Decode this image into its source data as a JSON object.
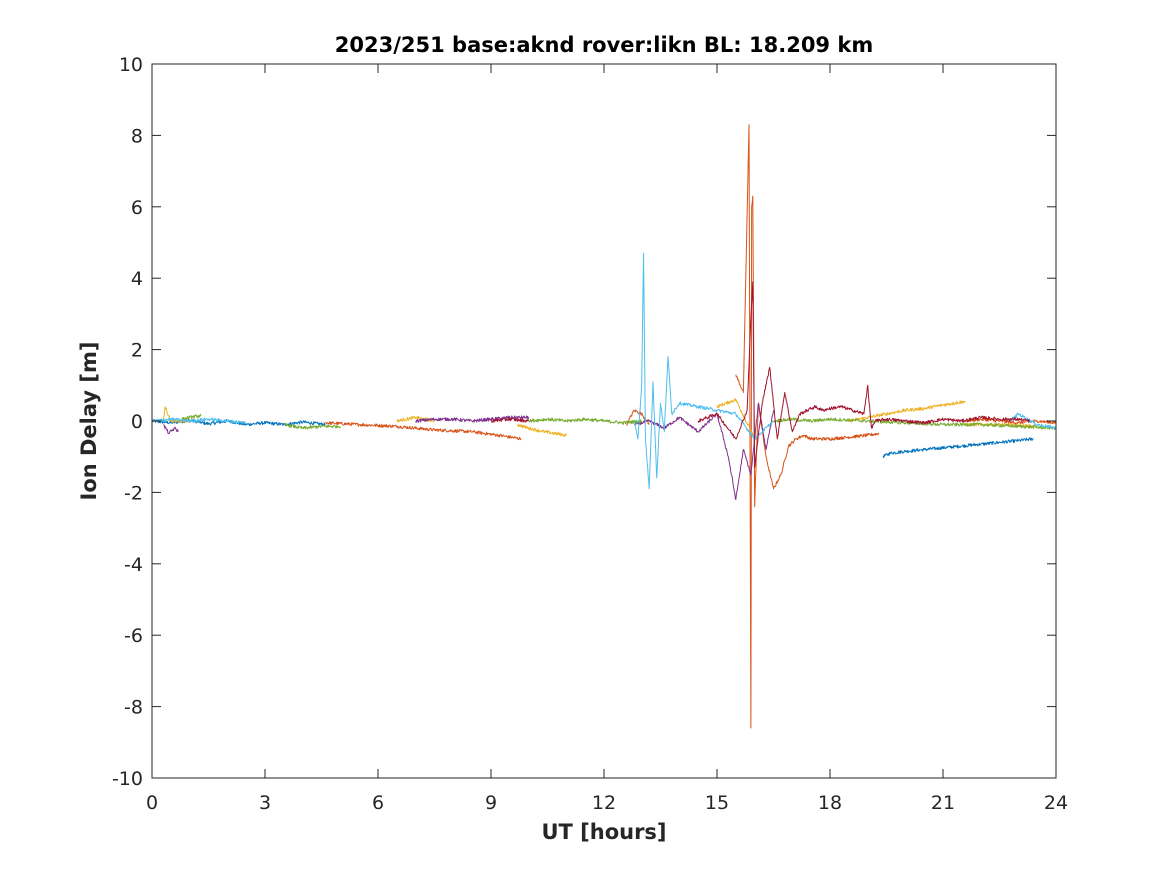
{
  "chart_data": {
    "type": "line",
    "title": "2023/251 base:aknd rover:likn BL: 18.209 km",
    "xlabel": "UT [hours]",
    "ylabel": "Ion Delay [m]",
    "xlim": [
      0,
      24
    ],
    "ylim": [
      -10,
      10
    ],
    "x_ticks": [
      "0",
      "3",
      "6",
      "9",
      "12",
      "15",
      "18",
      "21",
      "24"
    ],
    "y_ticks": [
      "10",
      "8",
      "6",
      "4",
      "2",
      "0",
      "-2",
      "-4",
      "-6",
      "-8",
      "-10"
    ],
    "grid": false,
    "legend": "none",
    "colors": [
      "#0072BD",
      "#D95319",
      "#EDB120",
      "#7E2F8E",
      "#77AC30",
      "#4DBEEE",
      "#A2142F"
    ],
    "series": [
      {
        "color": "#0072BD",
        "segments": [
          {
            "x": [
              0.0,
              0.5,
              1.0,
              1.5,
              2.0,
              2.5,
              3.0,
              3.5,
              4.0,
              4.6
            ],
            "y": [
              0.0,
              -0.05,
              0.02,
              -0.08,
              0.0,
              -0.1,
              -0.05,
              -0.1,
              -0.03,
              -0.1
            ]
          },
          {
            "x": [
              19.4,
              19.6,
              20.0,
              20.5,
              21.0,
              21.5,
              22.0,
              22.5,
              23.0,
              23.4
            ],
            "y": [
              -1.0,
              -0.9,
              -0.85,
              -0.8,
              -0.75,
              -0.7,
              -0.65,
              -0.6,
              -0.55,
              -0.5
            ]
          }
        ]
      },
      {
        "color": "#D95319",
        "segments": [
          {
            "x": [
              4.6,
              5.5,
              6.5,
              7.5,
              8.5,
              9.2,
              9.8
            ],
            "y": [
              -0.05,
              -0.1,
              -0.15,
              -0.25,
              -0.3,
              -0.4,
              -0.5
            ]
          },
          {
            "x": [
              12.6,
              12.8,
              13.0,
              13.2
            ],
            "y": [
              -0.1,
              0.3,
              0.2,
              -0.1
            ]
          },
          {
            "x": [
              15.5,
              15.7,
              15.85,
              15.9,
              15.92,
              15.95,
              16.0,
              16.05,
              16.1,
              16.3,
              16.5,
              16.7,
              16.9,
              17.1,
              17.3,
              17.5,
              18.0,
              18.5,
              19.0,
              19.3
            ],
            "y": [
              1.3,
              0.8,
              8.3,
              -8.6,
              6.0,
              6.3,
              -2.4,
              -0.8,
              0.5,
              -1.0,
              -1.9,
              -1.5,
              -0.7,
              -0.5,
              -0.4,
              -0.5,
              -0.5,
              -0.45,
              -0.4,
              -0.35
            ]
          },
          {
            "x": [
              21.6,
              22.0,
              22.5,
              23.0,
              23.5,
              24.0
            ],
            "y": [
              0.0,
              0.05,
              0.0,
              -0.05,
              0.0,
              -0.05
            ]
          }
        ]
      },
      {
        "color": "#EDB120",
        "segments": [
          {
            "x": [
              0.3,
              0.35,
              0.5,
              1.0
            ],
            "y": [
              0.0,
              0.4,
              0.0,
              0.0
            ]
          },
          {
            "x": [
              6.5,
              7.0,
              7.5
            ],
            "y": [
              0.0,
              0.1,
              0.0
            ]
          },
          {
            "x": [
              9.7,
              10.0,
              10.4,
              10.7,
              11.0
            ],
            "y": [
              -0.1,
              -0.2,
              -0.3,
              -0.35,
              -0.4
            ]
          },
          {
            "x": [
              15.0,
              15.5,
              16.0
            ],
            "y": [
              0.4,
              0.6,
              -0.5
            ]
          },
          {
            "x": [
              18.5,
              19.0,
              19.5,
              20.0,
              20.5,
              21.0,
              21.6
            ],
            "y": [
              0.0,
              0.1,
              0.2,
              0.3,
              0.35,
              0.45,
              0.55
            ]
          },
          {
            "x": [
              21.6,
              22.5,
              23.5
            ],
            "y": [
              -0.1,
              -0.1,
              -0.15
            ]
          }
        ]
      },
      {
        "color": "#7E2F8E",
        "segments": [
          {
            "x": [
              0.3,
              0.45,
              0.6,
              0.7
            ],
            "y": [
              -0.1,
              -0.35,
              -0.2,
              -0.3
            ]
          },
          {
            "x": [
              7.0,
              7.5,
              8.0,
              8.5,
              9.0,
              9.5,
              10.0
            ],
            "y": [
              0.0,
              0.05,
              0.05,
              0.0,
              0.05,
              0.1,
              0.1
            ]
          },
          {
            "x": [
              12.8,
              13.2,
              13.6,
              14.0,
              14.5,
              15.0,
              15.3,
              15.5,
              15.7,
              15.9,
              16.1,
              16.3,
              16.5
            ],
            "y": [
              -0.1,
              0.0,
              -0.2,
              0.1,
              -0.3,
              0.2,
              -1.0,
              -2.2,
              -0.8,
              -1.5,
              0.5,
              -0.8,
              0.3
            ]
          }
        ]
      },
      {
        "color": "#77AC30",
        "segments": [
          {
            "x": [
              0.8,
              1.0,
              1.3
            ],
            "y": [
              0.05,
              0.1,
              0.15
            ]
          },
          {
            "x": [
              3.5,
              4.0,
              4.5,
              5.0
            ],
            "y": [
              -0.1,
              -0.2,
              -0.15,
              -0.15
            ]
          },
          {
            "x": [
              10.0,
              10.5,
              11.0,
              11.5,
              12.0,
              12.5,
              13.0
            ],
            "y": [
              0.0,
              0.05,
              0.0,
              0.05,
              0.0,
              -0.05,
              0.0
            ]
          },
          {
            "x": [
              16.5,
              17.0,
              17.5,
              18.0,
              19.0,
              20.0,
              21.0,
              22.0,
              23.0,
              24.0
            ],
            "y": [
              0.0,
              0.05,
              0.0,
              0.05,
              0.0,
              -0.05,
              -0.1,
              -0.1,
              -0.15,
              -0.2
            ]
          }
        ]
      },
      {
        "color": "#4DBEEE",
        "segments": [
          {
            "x": [
              0.0,
              0.5,
              1.0,
              1.5,
              2.0,
              2.5
            ],
            "y": [
              0.0,
              0.05,
              0.0,
              0.05,
              0.0,
              -0.05
            ]
          },
          {
            "x": [
              12.8,
              12.9,
              13.0,
              13.05,
              13.1,
              13.2,
              13.3,
              13.4,
              13.5,
              13.6,
              13.7,
              13.8,
              14.0,
              14.5,
              15.0,
              15.5,
              16.0,
              16.5
            ],
            "y": [
              0.0,
              -0.5,
              1.0,
              4.7,
              -0.5,
              -1.9,
              1.1,
              -1.6,
              0.5,
              -0.3,
              1.8,
              0.2,
              0.5,
              0.4,
              0.3,
              0.2,
              -0.5,
              0.0
            ]
          },
          {
            "x": [
              22.8,
              23.0,
              23.5,
              24.0
            ],
            "y": [
              0.0,
              0.2,
              -0.1,
              -0.2
            ]
          }
        ]
      },
      {
        "color": "#A2142F",
        "segments": [
          {
            "x": [
              9.0,
              9.5,
              10.0
            ],
            "y": [
              0.0,
              0.05,
              0.0
            ]
          },
          {
            "x": [
              14.5,
              15.0,
              15.5,
              15.8,
              15.9,
              15.95,
              16.0,
              16.2,
              16.4,
              16.6,
              16.8,
              17.0,
              17.2,
              17.4,
              17.6,
              17.8,
              18.0,
              18.3,
              18.6,
              18.9,
              19.0,
              19.1,
              19.2,
              19.5,
              20.0,
              20.5,
              21.0,
              21.5,
              22.0,
              22.5,
              23.0,
              23.3
            ],
            "y": [
              0.0,
              0.2,
              -0.5,
              0.3,
              2.9,
              3.9,
              -1.3,
              0.5,
              1.5,
              -0.5,
              0.8,
              -0.3,
              0.2,
              0.3,
              0.4,
              0.3,
              0.35,
              0.4,
              0.3,
              0.2,
              1.0,
              -0.2,
              0.0,
              0.05,
              0.0,
              -0.05,
              0.05,
              0.0,
              0.1,
              0.05,
              0.05,
              0.0
            ]
          }
        ]
      }
    ]
  }
}
